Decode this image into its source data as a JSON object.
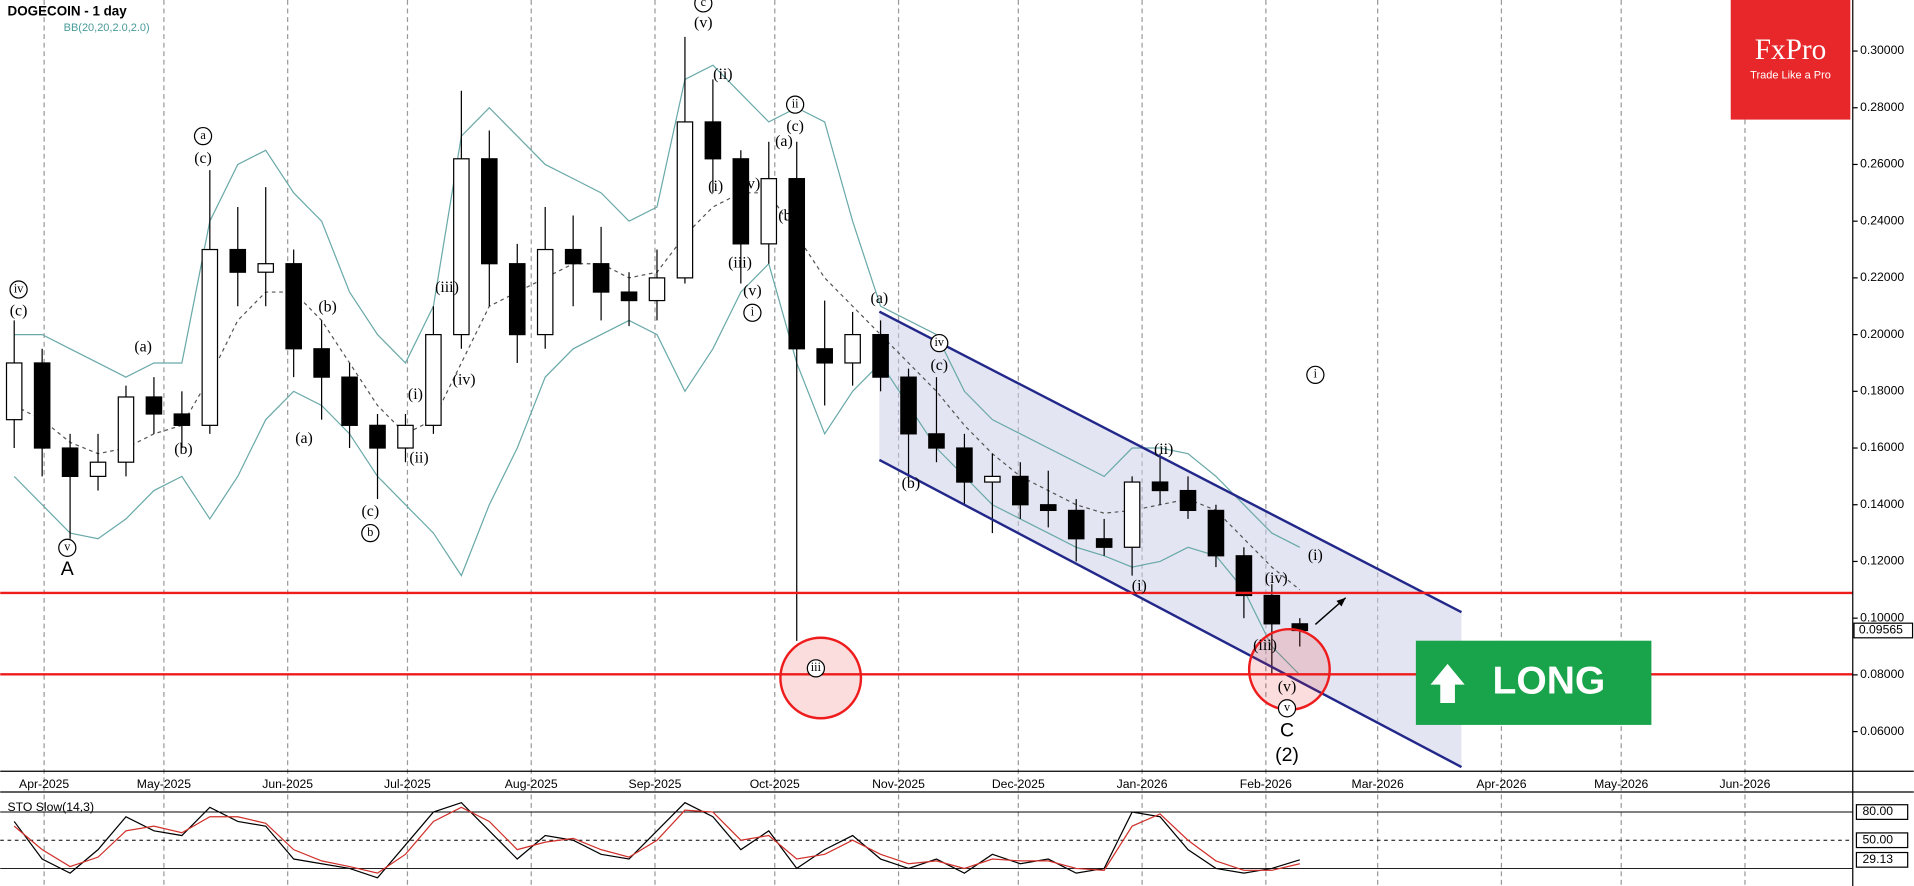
{
  "chart_data": [
    {
      "type": "candlestick",
      "title": "DOGECOIN - 1 day",
      "indicator": "BB(20,20,2.0,2.0)",
      "xlim": [
        0,
        464
      ],
      "ylim": [
        0.046,
        0.318
      ],
      "xticks": [
        {
          "value": 11,
          "label": "Apr-2025"
        },
        {
          "value": 41,
          "label": "May-2025"
        },
        {
          "value": 72,
          "label": "Jun-2025"
        },
        {
          "value": 102,
          "label": "Jul-2025"
        },
        {
          "value": 133,
          "label": "Aug-2025"
        },
        {
          "value": 164,
          "label": "Sep-2025"
        },
        {
          "value": 194,
          "label": "Oct-2025"
        },
        {
          "value": 225,
          "label": "Nov-2025"
        },
        {
          "value": 255,
          "label": "Dec-2025"
        },
        {
          "value": 286,
          "label": "Jan-2026"
        },
        {
          "value": 317,
          "label": "Feb-2026"
        },
        {
          "value": 345,
          "label": "Mar-2026"
        },
        {
          "value": 376,
          "label": "Apr-2026"
        },
        {
          "value": 406,
          "label": "May-2026"
        },
        {
          "value": 437,
          "label": "Jun-2026"
        }
      ],
      "yticks": [
        {
          "value": 0.06,
          "label": "0.06000"
        },
        {
          "value": 0.08,
          "label": "0.08000"
        },
        {
          "value": 0.1,
          "label": "0.10000"
        },
        {
          "value": 0.12,
          "label": "0.12000"
        },
        {
          "value": 0.14,
          "label": "0.14000"
        },
        {
          "value": 0.16,
          "label": "0.16000"
        },
        {
          "value": 0.18,
          "label": "0.18000"
        },
        {
          "value": 0.2,
          "label": "0.20000"
        },
        {
          "value": 0.22,
          "label": "0.22000"
        },
        {
          "value": 0.24,
          "label": "0.24000"
        },
        {
          "value": 0.26,
          "label": "0.26000"
        },
        {
          "value": 0.28,
          "label": "0.28000"
        },
        {
          "value": 0.3,
          "label": "0.30000"
        }
      ],
      "x": [
        3.5,
        10.5,
        17.5,
        24.5,
        31.5,
        38.5,
        45.5,
        52.5,
        59.5,
        66.5,
        73.5,
        80.5,
        87.5,
        94.5,
        101.5,
        108.5,
        115.5,
        122.5,
        129.5,
        136.5,
        143.5,
        150.5,
        157.5,
        164.5,
        171.5,
        178.5,
        185.5,
        192.5,
        199.5,
        206.5,
        213.5,
        220.5,
        227.5,
        234.5,
        241.5,
        248.5,
        255.5,
        262.5,
        269.5,
        276.5,
        283.5,
        290.5,
        297.5,
        304.5,
        311.5,
        318.5,
        325.5
      ],
      "open": [
        0.17,
        0.19,
        0.16,
        0.15,
        0.155,
        0.178,
        0.172,
        0.168,
        0.23,
        0.222,
        0.225,
        0.195,
        0.185,
        0.168,
        0.16,
        0.168,
        0.2,
        0.262,
        0.225,
        0.2,
        0.23,
        0.225,
        0.215,
        0.212,
        0.22,
        0.275,
        0.262,
        0.232,
        0.255,
        0.195,
        0.19,
        0.2,
        0.185,
        0.165,
        0.16,
        0.148,
        0.15,
        0.14,
        0.138,
        0.128,
        0.125,
        0.148,
        0.145,
        0.138,
        0.122,
        0.108,
        0.098
      ],
      "high": [
        0.205,
        0.195,
        0.165,
        0.165,
        0.182,
        0.185,
        0.18,
        0.258,
        0.245,
        0.252,
        0.23,
        0.205,
        0.19,
        0.172,
        0.172,
        0.21,
        0.286,
        0.272,
        0.232,
        0.245,
        0.242,
        0.238,
        0.222,
        0.23,
        0.305,
        0.29,
        0.265,
        0.268,
        0.268,
        0.212,
        0.208,
        0.205,
        0.188,
        0.185,
        0.165,
        0.158,
        0.155,
        0.152,
        0.142,
        0.135,
        0.15,
        0.158,
        0.15,
        0.14,
        0.125,
        0.112,
        0.1
      ],
      "low": [
        0.16,
        0.15,
        0.128,
        0.145,
        0.15,
        0.165,
        0.16,
        0.165,
        0.21,
        0.21,
        0.185,
        0.17,
        0.16,
        0.142,
        0.155,
        0.165,
        0.195,
        0.21,
        0.19,
        0.195,
        0.21,
        0.205,
        0.203,
        0.205,
        0.218,
        0.25,
        0.218,
        0.225,
        0.092,
        0.175,
        0.182,
        0.18,
        0.15,
        0.155,
        0.14,
        0.13,
        0.135,
        0.132,
        0.12,
        0.122,
        0.115,
        0.14,
        0.135,
        0.118,
        0.1,
        0.08,
        0.09
      ],
      "close": [
        0.19,
        0.16,
        0.15,
        0.155,
        0.178,
        0.172,
        0.168,
        0.23,
        0.222,
        0.225,
        0.195,
        0.185,
        0.168,
        0.16,
        0.168,
        0.2,
        0.262,
        0.225,
        0.2,
        0.23,
        0.225,
        0.215,
        0.212,
        0.22,
        0.275,
        0.262,
        0.232,
        0.255,
        0.195,
        0.19,
        0.2,
        0.185,
        0.165,
        0.16,
        0.148,
        0.15,
        0.14,
        0.138,
        0.128,
        0.125,
        0.148,
        0.145,
        0.138,
        0.122,
        0.108,
        0.098,
        0.09565
      ],
      "color": "#000000",
      "series": [
        {
          "name": "BB upper",
          "color": "#6aa9a9",
          "values": [
            0.2,
            0.2,
            0.195,
            0.19,
            0.185,
            0.19,
            0.19,
            0.24,
            0.26,
            0.265,
            0.25,
            0.24,
            0.215,
            0.2,
            0.19,
            0.21,
            0.27,
            0.28,
            0.27,
            0.26,
            0.255,
            0.25,
            0.24,
            0.245,
            0.29,
            0.295,
            0.285,
            0.275,
            0.28,
            0.275,
            0.24,
            0.21,
            0.205,
            0.2,
            0.18,
            0.17,
            0.165,
            0.16,
            0.155,
            0.15,
            0.16,
            0.16,
            0.158,
            0.15,
            0.14,
            0.13,
            0.125
          ]
        },
        {
          "name": "BB middle",
          "color": "#555555",
          "dashed": true,
          "values": [
            0.175,
            0.17,
            0.162,
            0.158,
            0.16,
            0.165,
            0.168,
            0.185,
            0.205,
            0.215,
            0.215,
            0.205,
            0.19,
            0.175,
            0.165,
            0.17,
            0.19,
            0.21,
            0.215,
            0.22,
            0.225,
            0.225,
            0.22,
            0.222,
            0.235,
            0.245,
            0.25,
            0.25,
            0.235,
            0.22,
            0.21,
            0.2,
            0.19,
            0.18,
            0.168,
            0.158,
            0.15,
            0.145,
            0.14,
            0.137,
            0.138,
            0.14,
            0.142,
            0.138,
            0.128,
            0.118,
            0.11
          ]
        },
        {
          "name": "BB lower",
          "color": "#6aa9a9",
          "values": [
            0.15,
            0.14,
            0.13,
            0.128,
            0.135,
            0.145,
            0.15,
            0.135,
            0.15,
            0.17,
            0.18,
            0.175,
            0.165,
            0.15,
            0.14,
            0.13,
            0.115,
            0.14,
            0.16,
            0.185,
            0.195,
            0.2,
            0.205,
            0.2,
            0.18,
            0.195,
            0.215,
            0.225,
            0.19,
            0.165,
            0.18,
            0.19,
            0.175,
            0.16,
            0.15,
            0.14,
            0.135,
            0.13,
            0.125,
            0.122,
            0.118,
            0.12,
            0.125,
            0.122,
            0.11,
            0.09,
            0.08
          ]
        }
      ],
      "levels": [
        0.1089,
        0.0802
      ],
      "level_color": "#ee1c1c",
      "channel": {
        "x": [
          220.2,
          366
        ],
        "upper": [
          0.2081,
          0.1021
        ],
        "lower": [
          0.1558,
          0.0475
        ],
        "color": "#22288a"
      },
      "arrow": {
        "x": [
          329.4,
          337
        ],
        "y": [
          0.0978,
          0.1072
        ]
      },
      "highlights": {
        "x": [
          205.5,
          322.9
        ],
        "y": [
          0.0789,
          0.0819
        ],
        "color": "#ee1c1c"
      },
      "annotations": [
        {
          "text": "iv",
          "x": 4.6,
          "y": 0.2159,
          "circled": true
        },
        {
          "text": "(c)",
          "x": 4.6,
          "y": 0.2081
        },
        {
          "text": "v",
          "x": 16.8,
          "y": 0.1248,
          "circled": true
        },
        {
          "text": "A",
          "x": 16.8,
          "y": 0.1171
        },
        {
          "text": "(a)",
          "x": 35.8,
          "y": 0.1953
        },
        {
          "text": "(b)",
          "x": 45.9,
          "y": 0.1592
        },
        {
          "text": "a",
          "x": 50.8,
          "y": 0.27,
          "circled": true
        },
        {
          "text": "(c)",
          "x": 50.8,
          "y": 0.2618
        },
        {
          "text": "(b)",
          "x": 82,
          "y": 0.2094
        },
        {
          "text": "(a)",
          "x": 76.1,
          "y": 0.1631
        },
        {
          "text": "(c)",
          "x": 92.7,
          "y": 0.1373
        },
        {
          "text": "b",
          "x": 92.7,
          "y": 0.13,
          "circled": true
        },
        {
          "text": "(i)",
          "x": 104,
          "y": 0.1785
        },
        {
          "text": "(ii)",
          "x": 104.9,
          "y": 0.1562
        },
        {
          "text": "(iii)",
          "x": 111.9,
          "y": 0.2163
        },
        {
          "text": "(iv)",
          "x": 116.2,
          "y": 0.1837
        },
        {
          "text": "c",
          "x": 176.1,
          "y": 0.3168,
          "circled": true
        },
        {
          "text": "(v)",
          "x": 176.1,
          "y": 0.3095
        },
        {
          "text": "(ii)",
          "x": 181,
          "y": 0.2914
        },
        {
          "text": "(i)",
          "x": 179.2,
          "y": 0.2519
        },
        {
          "text": "(iv)",
          "x": 187.5,
          "y": 0.2528
        },
        {
          "text": "(iii)",
          "x": 185.3,
          "y": 0.2249
        },
        {
          "text": "(v)",
          "x": 188.4,
          "y": 0.215
        },
        {
          "text": "i",
          "x": 188.4,
          "y": 0.2077,
          "circled": true
        },
        {
          "text": "ii",
          "x": 199.1,
          "y": 0.2811,
          "circled": true
        },
        {
          "text": "(c)",
          "x": 199.1,
          "y": 0.273
        },
        {
          "text": "(a)",
          "x": 196.3,
          "y": 0.2678
        },
        {
          "text": "(b)",
          "x": 197.2,
          "y": 0.2416
        },
        {
          "text": "iii",
          "x": 204.3,
          "y": 0.0823,
          "circled": true
        },
        {
          "text": "(a)",
          "x": 220.2,
          "y": 0.2124
        },
        {
          "text": "iv",
          "x": 235.2,
          "y": 0.197,
          "circled": true
        },
        {
          "text": "(c)",
          "x": 235.2,
          "y": 0.1888
        },
        {
          "text": "(b)",
          "x": 228.1,
          "y": 0.1472
        },
        {
          "text": "(i)",
          "x": 285.3,
          "y": 0.1111
        },
        {
          "text": "(ii)",
          "x": 291.4,
          "y": 0.1592
        },
        {
          "text": "(iv)",
          "x": 319.6,
          "y": 0.1137
        },
        {
          "text": "(iii)",
          "x": 316.8,
          "y": 0.0901
        },
        {
          "text": "(v)",
          "x": 322.3,
          "y": 0.0755
        },
        {
          "text": "v",
          "x": 322.3,
          "y": 0.0682,
          "circled": true
        },
        {
          "text": "C",
          "x": 322.3,
          "y": 0.06
        },
        {
          "text": "(2)",
          "x": 322.3,
          "y": 0.0514
        },
        {
          "text": "(i)",
          "x": 329.4,
          "y": 0.1218
        },
        {
          "text": "i",
          "x": 329.4,
          "y": 0.1858,
          "circled": true
        }
      ]
    },
    {
      "type": "line",
      "title": "STO Slow(14,3)",
      "ylim": [
        0,
        100
      ],
      "yticks": [
        {
          "value": 80,
          "label": "80.00"
        },
        {
          "value": 50,
          "label": "50.00"
        }
      ],
      "levels": [
        80,
        50,
        20
      ],
      "series": [
        {
          "name": "%K",
          "color": "#000000",
          "values": [
            70,
            30,
            15,
            40,
            75,
            60,
            55,
            85,
            70,
            65,
            30,
            25,
            20,
            10,
            45,
            80,
            90,
            60,
            30,
            55,
            50,
            35,
            30,
            60,
            90,
            75,
            40,
            60,
            20,
            40,
            55,
            30,
            20,
            30,
            15,
            35,
            25,
            30,
            15,
            20,
            80,
            75,
            40,
            20,
            15,
            20,
            29.13
          ]
        },
        {
          "name": "%D",
          "color": "#d0302a",
          "values": [
            65,
            40,
            22,
            32,
            60,
            65,
            58,
            75,
            75,
            68,
            40,
            28,
            22,
            15,
            35,
            70,
            85,
            70,
            40,
            48,
            52,
            40,
            32,
            50,
            82,
            80,
            50,
            55,
            30,
            35,
            50,
            35,
            25,
            28,
            20,
            30,
            28,
            28,
            20,
            18,
            65,
            78,
            50,
            28,
            18,
            18,
            25
          ]
        }
      ]
    }
  ],
  "logo": {
    "name": "FxPro",
    "tagline": "Trade Like a Pro"
  },
  "signal": "LONG"
}
